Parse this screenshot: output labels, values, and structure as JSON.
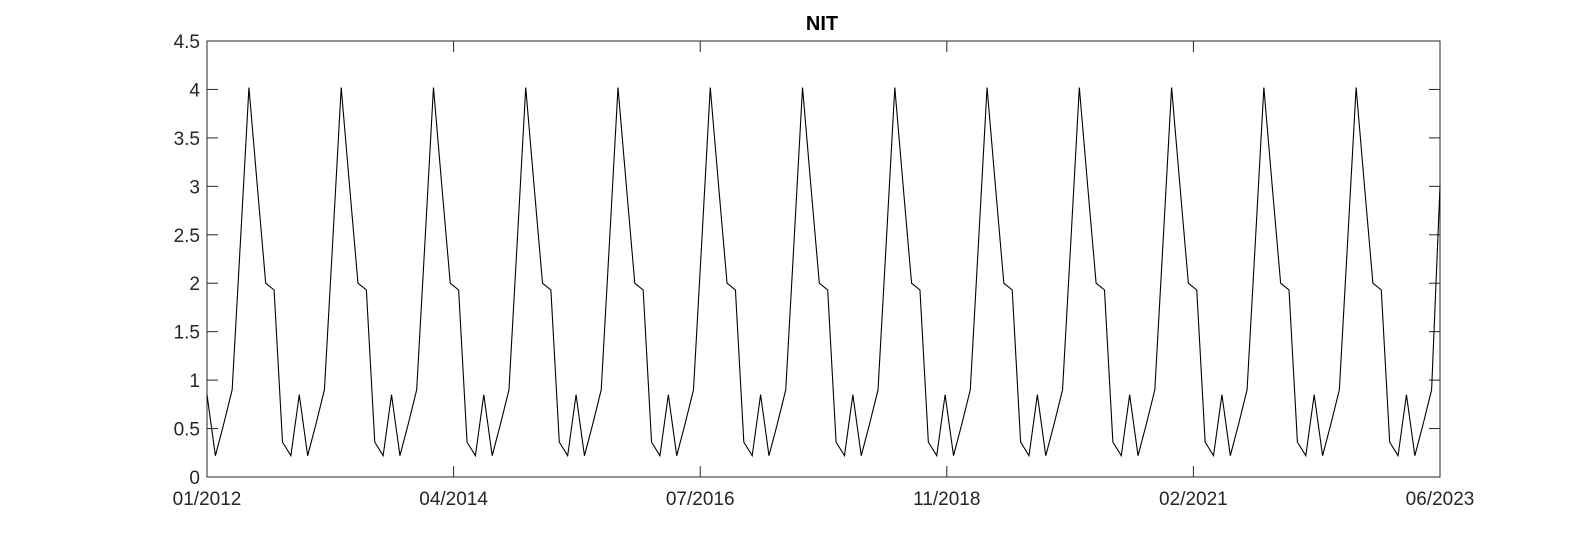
{
  "chart_data": {
    "type": "line",
    "title": "NIT",
    "xlabel": "",
    "ylabel": "",
    "x_start": "01/2012",
    "x_end": "06/2023",
    "frequency": "monthly",
    "ylim": [
      0,
      4.5
    ],
    "yticks": [
      0,
      0.5,
      1,
      1.5,
      2,
      2.5,
      3,
      3.5,
      4,
      4.5
    ],
    "ytick_labels": [
      "0",
      "0.5",
      "1",
      "1.5",
      "2",
      "2.5",
      "3",
      "3.5",
      "4",
      "4.5"
    ],
    "xticks": [
      "01/2012",
      "04/2014",
      "07/2016",
      "11/2018",
      "02/2021",
      "06/2023"
    ],
    "grid": false,
    "line_color": "#000000",
    "series": [
      {
        "values": [
          0.85,
          0.22,
          0.55,
          0.9,
          2.45,
          4.02,
          3.0,
          2.0,
          1.93,
          0.36,
          0.22,
          0.85,
          0.22,
          0.55,
          0.9,
          2.45,
          4.02,
          3.0,
          2.0,
          1.93,
          0.36,
          0.22,
          0.85,
          0.22,
          0.55,
          0.9,
          2.45,
          4.02,
          3.0,
          2.0,
          1.93,
          0.36,
          0.22,
          0.85,
          0.22,
          0.55,
          0.9,
          2.45,
          4.02,
          3.0,
          2.0,
          1.93,
          0.36,
          0.22,
          0.85,
          0.22,
          0.55,
          0.9,
          2.45,
          4.02,
          3.0,
          2.0,
          1.93,
          0.36,
          0.22,
          0.85,
          0.22,
          0.55,
          0.9,
          2.45,
          4.02,
          3.0,
          2.0,
          1.93,
          0.36,
          0.22,
          0.85,
          0.22,
          0.55,
          0.9,
          2.45,
          4.02,
          3.0,
          2.0,
          1.93,
          0.36,
          0.22,
          0.85,
          0.22,
          0.55,
          0.9,
          2.45,
          4.02,
          3.0,
          2.0,
          1.93,
          0.36,
          0.22,
          0.85,
          0.22,
          0.55,
          0.9,
          2.45,
          4.02,
          3.0,
          2.0,
          1.93,
          0.36,
          0.22,
          0.85,
          0.22,
          0.55,
          0.9,
          2.45,
          4.02,
          3.0,
          2.0,
          1.93,
          0.36,
          0.22,
          0.85,
          0.22,
          0.55,
          0.9,
          2.45,
          4.02,
          3.0,
          2.0,
          1.93,
          0.36,
          0.22,
          0.85,
          0.22,
          0.55,
          0.9,
          2.45,
          4.02,
          3.0,
          2.0,
          1.93,
          0.36,
          0.22,
          0.85,
          0.22,
          0.55,
          0.9,
          2.45,
          4.02,
          3.0,
          2.0,
          1.93,
          0.36,
          0.22,
          0.85,
          0.22,
          0.55,
          0.9,
          3.0
        ]
      }
    ]
  }
}
